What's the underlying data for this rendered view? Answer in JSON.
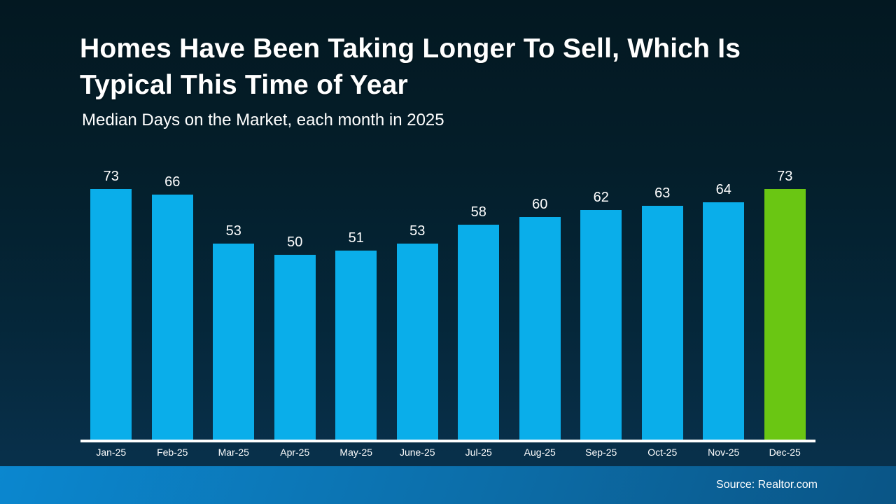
{
  "slide": {
    "footer": {
      "source_label": "Source: Realtor.com"
    }
  },
  "colors": {
    "bar_blue": "#0aaeea",
    "bar_highlight_green": "#6ac613",
    "axis_white": "#ffffff",
    "background_dark_navy": "#041e2a",
    "footer_blue_left": "#0b87cf",
    "footer_blue_right": "#0a5586"
  },
  "chart_data": {
    "type": "bar",
    "title": "Homes Have Been Taking Longer To Sell, Which Is Typical This Time of Year",
    "subtitle": "Median Days on the Market, each month in 2025",
    "categories": [
      "Jan-25",
      "Feb-25",
      "Mar-25",
      "Apr-25",
      "May-25",
      "June-25",
      "Jul-25",
      "Aug-25",
      "Sep-25",
      "Oct-25",
      "Nov-25",
      "Dec-25"
    ],
    "values": [
      73,
      66,
      53,
      50,
      51,
      53,
      58,
      60,
      62,
      63,
      64,
      73
    ],
    "ylim": [
      0,
      73
    ],
    "xlabel": "",
    "ylabel": "",
    "grid": false,
    "legend": "none",
    "value_labels_shown": true,
    "highlight_index": 11
  }
}
